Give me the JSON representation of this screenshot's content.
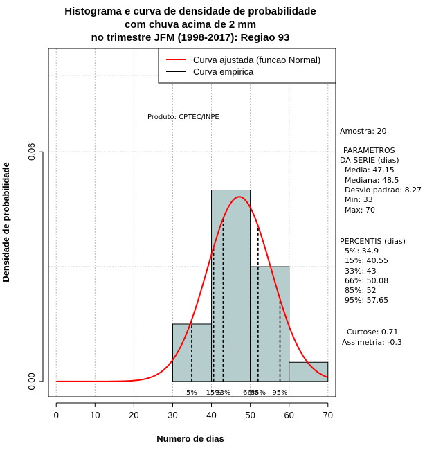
{
  "chart_data": {
    "type": "histogram",
    "title": [
      "Histograma e curva de densidade de probabilidade",
      "com chuva acima de 2 mm",
      "no trimestre JFM (1998-2017): Regiao 93"
    ],
    "xlabel": "Numero de dias",
    "ylabel": "Densidade de probabilidade",
    "xlim": [
      -2,
      72
    ],
    "ylim": [
      -0.004,
      0.087
    ],
    "x_ticks": [
      "0",
      "10",
      "20",
      "30",
      "40",
      "50",
      "60",
      "70"
    ],
    "y_ticks": [
      "0.00",
      "0.06"
    ],
    "bins": [
      {
        "from": 30,
        "to": 40,
        "density": 0.015
      },
      {
        "from": 40,
        "to": 50,
        "density": 0.05
      },
      {
        "from": 50,
        "to": 60,
        "density": 0.03
      },
      {
        "from": 60,
        "to": 70,
        "density": 0.005
      }
    ],
    "normal_curve": {
      "name": "Curva ajustada (funcao Normal)",
      "mean": 47.15,
      "sd": 8.27,
      "color": "#ff0000"
    },
    "empirical_curve": {
      "name": "Curva empirica",
      "color": "#000000"
    },
    "percentile_lines": [
      {
        "label": "5%",
        "x": 34.9
      },
      {
        "label": "15%",
        "x": 40.55
      },
      {
        "label": "33%",
        "x": 43
      },
      {
        "label": "66%",
        "x": 50.08
      },
      {
        "label": "85%",
        "x": 52
      },
      {
        "label": "95%",
        "x": 57.65
      }
    ],
    "grid": true,
    "legend_position": "top-right",
    "bar_color": "#b6cdcd",
    "annotation": "Produto: CPTEC/INPE"
  },
  "stats": {
    "amostra": "Amostra: 20",
    "param_header1": "PARAMETROS",
    "param_header2": "DA SERIE (dias)",
    "media": "Media: 47.15",
    "mediana": "Mediana: 48.5",
    "desvio": "Desvio padrao: 8.27",
    "min": "Min: 33",
    "max": "Max: 70",
    "percentis_header": "PERCENTIS (dias)",
    "p5": "5%: 34.9",
    "p15": "15%: 40.55",
    "p33": "33%: 43",
    "p66": "66%: 50.08",
    "p85": "85%: 52",
    "p95": "95%: 57.65",
    "curtose": "Curtose: 0.71",
    "assimetria": "Assimetria: -0.3"
  }
}
